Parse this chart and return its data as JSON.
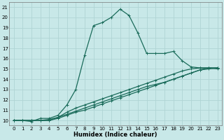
{
  "xlabel": "Humidex (Indice chaleur)",
  "ylabel": "",
  "background_color": "#c8e8e8",
  "grid_color": "#b0d4d4",
  "line_color": "#1a6b5a",
  "xlim": [
    -0.5,
    23.5
  ],
  "ylim": [
    9.5,
    21.5
  ],
  "xticks": [
    0,
    1,
    2,
    3,
    4,
    5,
    6,
    7,
    8,
    9,
    10,
    11,
    12,
    13,
    14,
    15,
    16,
    17,
    18,
    19,
    20,
    21,
    22,
    23
  ],
  "yticks": [
    10,
    11,
    12,
    13,
    14,
    15,
    16,
    17,
    18,
    19,
    20,
    21
  ],
  "line1_x": [
    0,
    1,
    2,
    3,
    4,
    5,
    6,
    7,
    8,
    9,
    10,
    11,
    12,
    13,
    14,
    15,
    16,
    17,
    18,
    19,
    20,
    21,
    22,
    23
  ],
  "line1_y": [
    10,
    10,
    9.9,
    10.2,
    10.2,
    10.5,
    11.5,
    13.0,
    16.3,
    19.2,
    19.5,
    20.0,
    20.8,
    20.2,
    18.5,
    16.5,
    16.5,
    16.5,
    16.7,
    15.8,
    15.2,
    15.1,
    15.1,
    15.0
  ],
  "line2_x": [
    0,
    1,
    2,
    3,
    4,
    5,
    6,
    7,
    8,
    9,
    10,
    11,
    12,
    13,
    14,
    15,
    16,
    17,
    18,
    19,
    20,
    21,
    22,
    23
  ],
  "line2_y": [
    10,
    10,
    10,
    10,
    10,
    10.3,
    10.8,
    11.2,
    11.5,
    11.8,
    12.1,
    12.4,
    12.7,
    13.0,
    13.3,
    13.6,
    13.9,
    14.2,
    14.5,
    14.8,
    15.0,
    15.1,
    15.1,
    15.1
  ],
  "line3_x": [
    0,
    1,
    2,
    3,
    4,
    5,
    6,
    7,
    8,
    9,
    10,
    11,
    12,
    13,
    14,
    15,
    16,
    17,
    18,
    19,
    20,
    21,
    22,
    23
  ],
  "line3_y": [
    10,
    10,
    10,
    10,
    10,
    10.2,
    10.5,
    10.8,
    11.0,
    11.3,
    11.6,
    11.9,
    12.2,
    12.5,
    12.8,
    13.1,
    13.4,
    13.7,
    14.0,
    14.3,
    14.6,
    14.9,
    15.0,
    15.1
  ],
  "line4_x": [
    0,
    1,
    2,
    3,
    4,
    5,
    6,
    7,
    8,
    9,
    10,
    11,
    12,
    13,
    14,
    15,
    16,
    17,
    18,
    19,
    20,
    21,
    22,
    23
  ],
  "line4_y": [
    10,
    10,
    10,
    10,
    10.1,
    10.3,
    10.6,
    10.9,
    11.2,
    11.5,
    11.8,
    12.1,
    12.4,
    12.7,
    13.0,
    13.3,
    13.5,
    13.7,
    14.0,
    14.3,
    14.6,
    14.9,
    15.1,
    15.1
  ],
  "xlabel_fontsize": 6,
  "tick_fontsize": 5,
  "linewidth": 0.9,
  "markersize": 3
}
